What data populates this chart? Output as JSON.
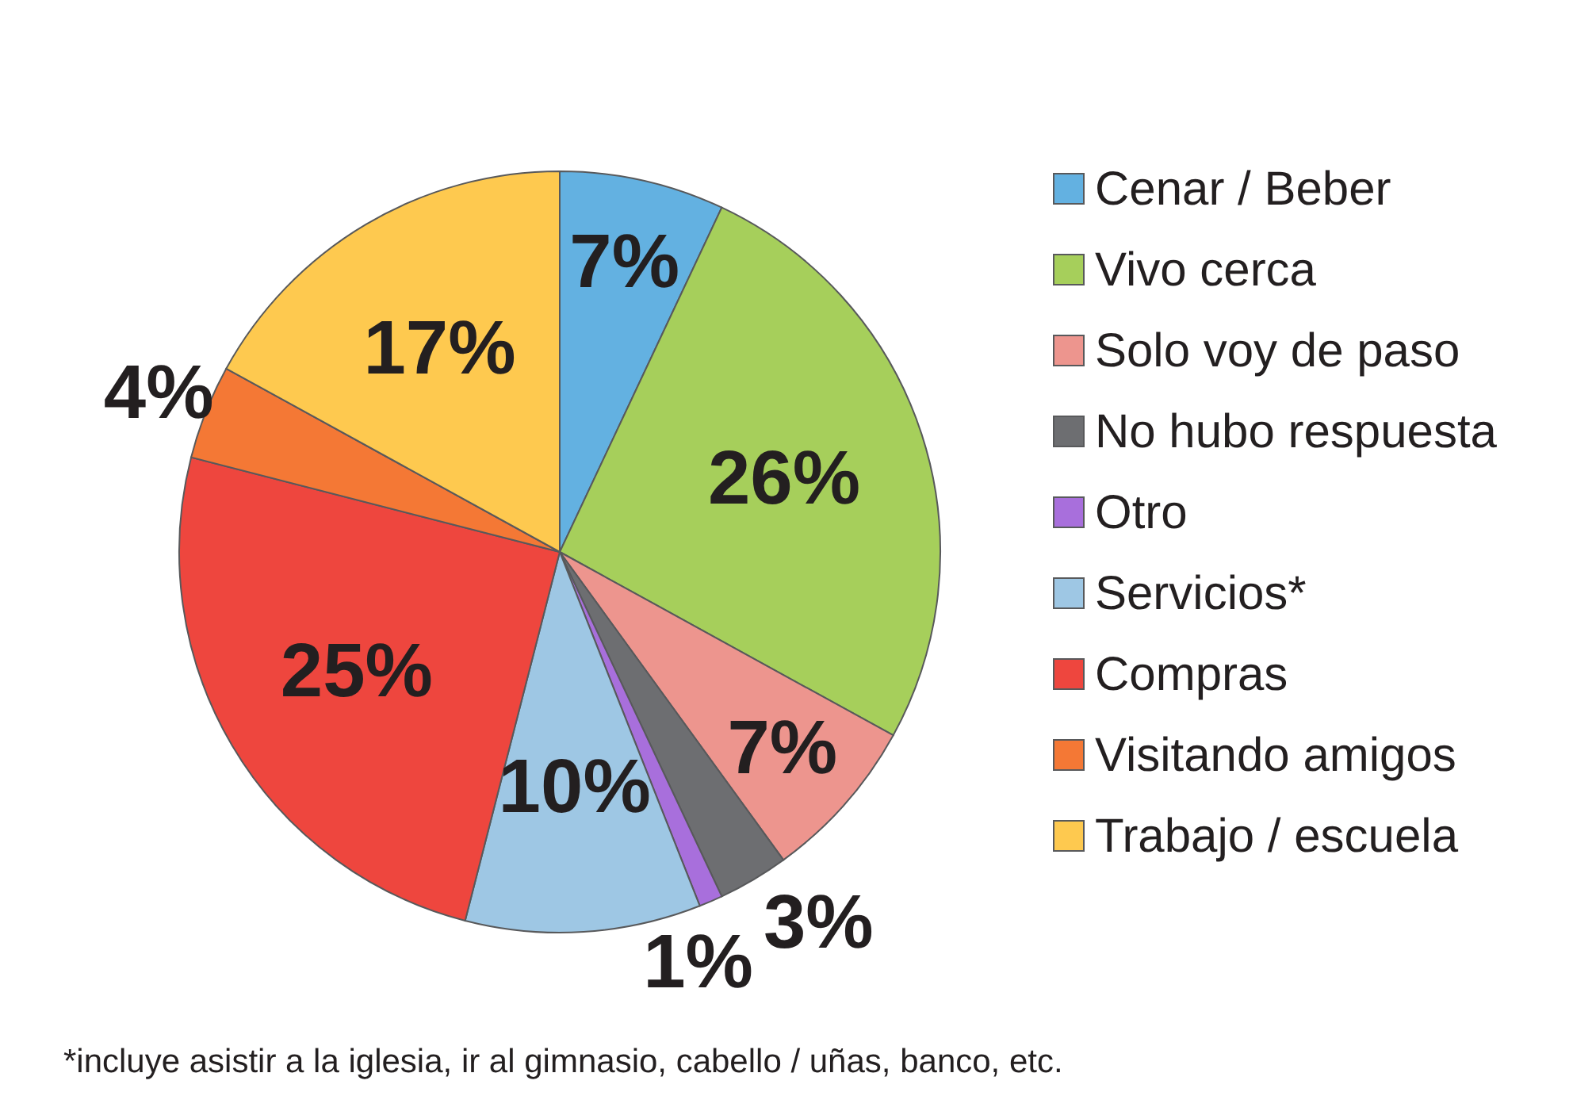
{
  "chart_data": {
    "type": "pie",
    "categories": [
      "Cenar / Beber",
      "Vivo cerca",
      "Solo voy de paso",
      "No hubo respuesta",
      "Otro",
      "Servicios*",
      "Compras",
      "Visitando amigos",
      "Trabajo / escuela"
    ],
    "values": [
      7,
      26,
      7,
      3,
      1,
      10,
      25,
      4,
      17
    ],
    "value_labels": [
      "7%",
      "26%",
      "7%",
      "3%",
      "1%",
      "10%",
      "25%",
      "4%",
      "17%"
    ],
    "colors": [
      "#63b1e1",
      "#a6cf5b",
      "#ed958e",
      "#6d6e71",
      "#a86fdc",
      "#9ec7e4",
      "#ee463e",
      "#f47835",
      "#fec94f"
    ],
    "legend": "right",
    "annotations": [
      "*incluye asistir a la iglesia, ir al gimnasio, cabello / uñas, banco, etc."
    ]
  }
}
